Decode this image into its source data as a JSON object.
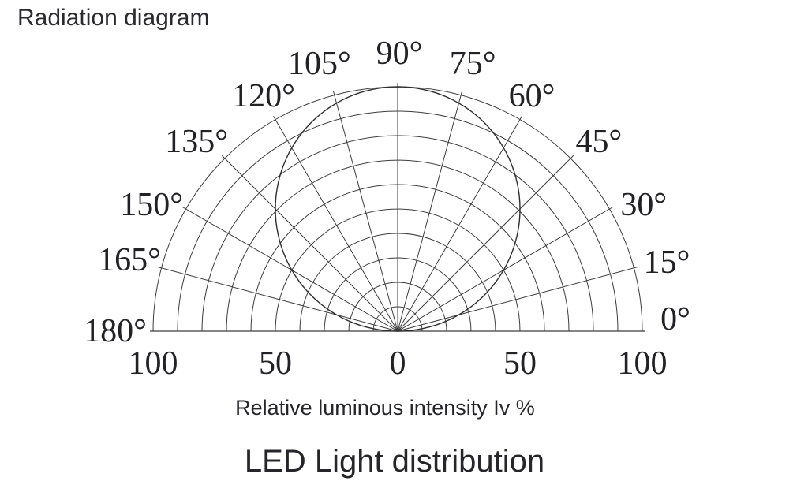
{
  "page": {
    "title": "Radiation diagram"
  },
  "colors": {
    "background": "#ffffff",
    "grid_line": "#3c3c3c",
    "curve_line": "#2e2e2e",
    "text": "#26262a"
  },
  "chart_data": {
    "type": "line",
    "subtype": "polar-semicircle-radiation",
    "title": "Radiation diagram",
    "caption": "Relative luminous intensity Iv %",
    "footer_title": "LED Light distribution",
    "angle_unit": "deg",
    "angle_ticks": [
      0,
      15,
      30,
      45,
      60,
      75,
      90,
      105,
      120,
      135,
      150,
      165,
      180
    ],
    "angle_tick_labels": [
      "0°",
      "15°",
      "30°",
      "45°",
      "60°",
      "75°",
      "90°",
      "105°",
      "120°",
      "135°",
      "150°",
      "165°",
      "180°"
    ],
    "radial_range": [
      0,
      100
    ],
    "radial_grid_percent": [
      10,
      20,
      30,
      40,
      50,
      60,
      70,
      80,
      90,
      100
    ],
    "radial_axis_labels": [
      {
        "label": "100",
        "frac": -1
      },
      {
        "label": "50",
        "frac": -0.5
      },
      {
        "label": "0",
        "frac": 0
      },
      {
        "label": "50",
        "frac": 0.5
      },
      {
        "label": "100",
        "frac": 1
      }
    ],
    "grid": true,
    "legend": false,
    "series": [
      {
        "name": "relative-luminous-intensity",
        "model": "lambertian r(theta) = 100 * sin(theta)",
        "amplitude_percent": 100,
        "points": [
          {
            "angle_deg": 0,
            "iv_percent": 0
          },
          {
            "angle_deg": 15,
            "iv_percent": 26
          },
          {
            "angle_deg": 30,
            "iv_percent": 50
          },
          {
            "angle_deg": 45,
            "iv_percent": 71
          },
          {
            "angle_deg": 60,
            "iv_percent": 87
          },
          {
            "angle_deg": 75,
            "iv_percent": 97
          },
          {
            "angle_deg": 90,
            "iv_percent": 100
          },
          {
            "angle_deg": 105,
            "iv_percent": 97
          },
          {
            "angle_deg": 120,
            "iv_percent": 87
          },
          {
            "angle_deg": 135,
            "iv_percent": 71
          },
          {
            "angle_deg": 150,
            "iv_percent": 50
          },
          {
            "angle_deg": 165,
            "iv_percent": 26
          },
          {
            "angle_deg": 180,
            "iv_percent": 0
          }
        ]
      }
    ]
  }
}
